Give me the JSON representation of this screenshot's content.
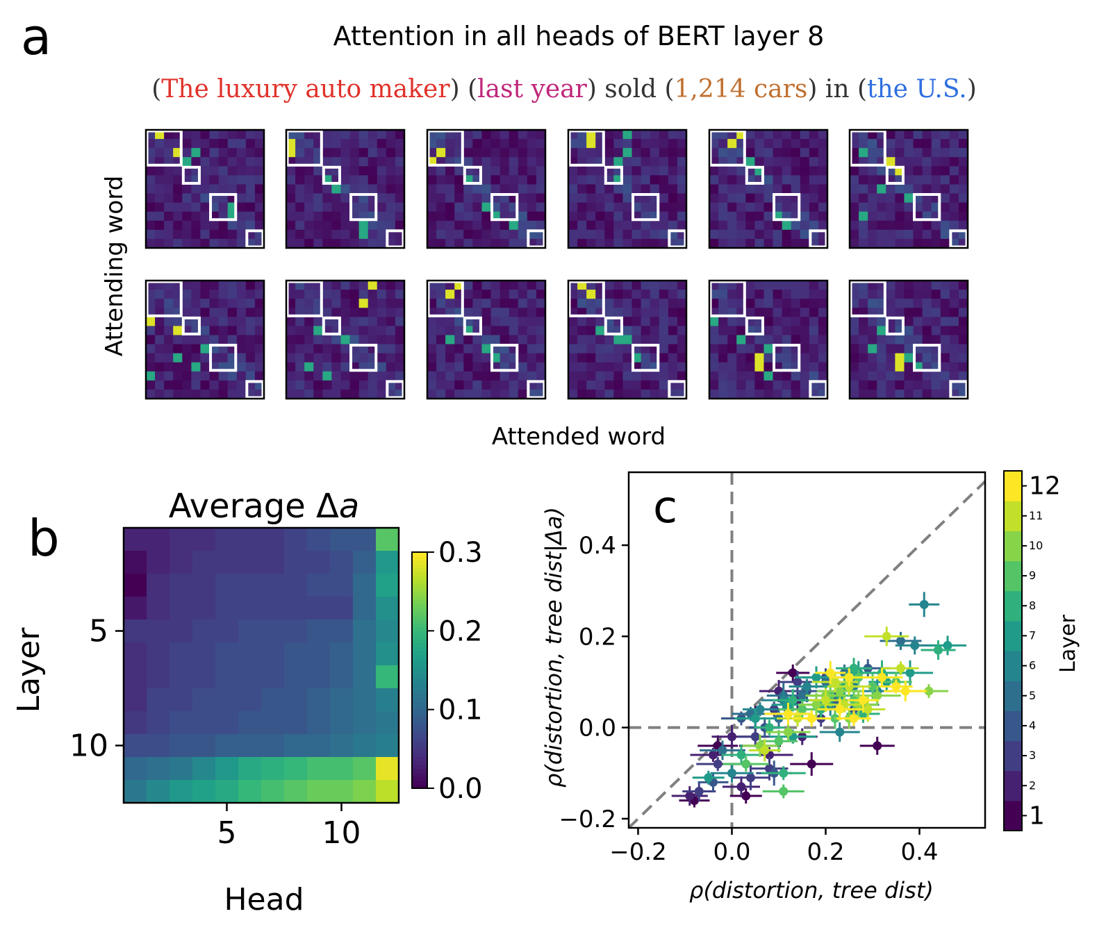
{
  "panels": {
    "a": {
      "letter": "a",
      "title": "Attention in all heads of BERT layer 8",
      "sentence": [
        {
          "text": "(",
          "color": "#333333"
        },
        {
          "text": "The luxury auto maker",
          "color": "#e0322b"
        },
        {
          "text": ") (",
          "color": "#333333"
        },
        {
          "text": "last year",
          "color": "#c0267a"
        },
        {
          "text": ") sold (",
          "color": "#333333"
        },
        {
          "text": "1,214 cars",
          "color": "#c07030"
        },
        {
          "text": ") in (",
          "color": "#333333"
        },
        {
          "text": "the U.S.",
          "color": "#2f6fe0"
        },
        {
          "text": ")",
          "color": "#333333"
        }
      ],
      "ylabel": "Attending word",
      "xlabel": "Attended word"
    },
    "b": {
      "letter": "b",
      "title": "Average Δ",
      "title_italic": "a",
      "xlabel": "Head",
      "ylabel": "Layer",
      "colorbar_ticks": [
        "0.0",
        "0.1",
        "0.2",
        "0.3"
      ]
    },
    "c": {
      "letter": "c",
      "xlabel": "ρ(distortion, tree dist)",
      "ylabel": "ρ(distortion, tree dist|Δa)",
      "colorbar_label": "Layer"
    }
  },
  "chart_data": [
    {
      "type": "heatmap",
      "panel": "a",
      "description_words": 13,
      "heads": 12,
      "phrase_groups": [
        [
          0,
          3
        ],
        [
          4,
          5
        ],
        [
          7,
          9
        ],
        [
          11,
          12
        ]
      ],
      "colormap": "viridis",
      "peaks": [
        [
          [
            0,
            1
          ],
          [
            2,
            3
          ],
          [
            3,
            4
          ],
          [
            2,
            5
          ],
          [
            8,
            9
          ],
          [
            9,
            9
          ]
        ],
        [
          [
            1,
            0
          ],
          [
            2,
            0
          ],
          [
            5,
            4
          ],
          [
            6,
            5
          ],
          [
            10,
            8
          ],
          [
            11,
            8
          ]
        ],
        [
          [
            3,
            0
          ],
          [
            2,
            1
          ],
          [
            5,
            4
          ],
          [
            8,
            6
          ],
          [
            10,
            9
          ],
          [
            9,
            7
          ]
        ],
        [
          [
            0,
            2
          ],
          [
            1,
            2
          ],
          [
            3,
            5
          ],
          [
            0,
            6
          ],
          [
            2,
            6
          ],
          [
            5,
            5
          ]
        ],
        [
          [
            0,
            3
          ],
          [
            1,
            2
          ],
          [
            3,
            4
          ],
          [
            4,
            5
          ],
          [
            9,
            7
          ],
          [
            10,
            8
          ]
        ],
        [
          [
            3,
            4
          ],
          [
            4,
            5
          ],
          [
            2,
            1
          ],
          [
            6,
            3
          ],
          [
            9,
            1
          ],
          [
            7,
            6
          ]
        ]
      ],
      "peaks_row2": [
        [
          [
            4,
            0
          ],
          [
            5,
            3
          ],
          [
            7,
            6
          ],
          [
            8,
            3
          ],
          [
            9,
            5
          ],
          [
            10,
            0
          ]
        ],
        [
          [
            0,
            9
          ],
          [
            2,
            8
          ],
          [
            5,
            3
          ],
          [
            6,
            6
          ],
          [
            9,
            2
          ],
          [
            10,
            4
          ]
        ],
        [
          [
            0,
            3
          ],
          [
            1,
            2
          ],
          [
            5,
            4
          ],
          [
            7,
            6
          ],
          [
            8,
            7
          ],
          [
            6,
            2
          ]
        ],
        [
          [
            0,
            1
          ],
          [
            1,
            2
          ],
          [
            5,
            3
          ],
          [
            6,
            6
          ],
          [
            6,
            5
          ],
          [
            8,
            7
          ]
        ],
        [
          [
            8,
            5
          ],
          [
            9,
            5
          ],
          [
            4,
            0
          ],
          [
            6,
            3
          ],
          [
            7,
            6
          ],
          [
            10,
            6
          ]
        ],
        [
          [
            8,
            5
          ],
          [
            9,
            5
          ],
          [
            8,
            6
          ],
          [
            7,
            2
          ],
          [
            9,
            7
          ],
          [
            5,
            3
          ]
        ]
      ]
    },
    {
      "type": "heatmap",
      "panel": "b",
      "title": "Average Δa",
      "xlabel": "Head",
      "ylabel": "Layer",
      "x_ticks": [
        5,
        10
      ],
      "y_ticks": [
        5,
        10
      ],
      "rows": 12,
      "cols": 12,
      "color_range": [
        0.0,
        0.3
      ],
      "values": [
        [
          0.03,
          0.03,
          0.04,
          0.04,
          0.05,
          0.05,
          0.05,
          0.06,
          0.07,
          0.08,
          0.08,
          0.22
        ],
        [
          0.01,
          0.03,
          0.04,
          0.05,
          0.05,
          0.05,
          0.05,
          0.06,
          0.06,
          0.07,
          0.09,
          0.16
        ],
        [
          0.0,
          0.04,
          0.05,
          0.05,
          0.06,
          0.06,
          0.06,
          0.06,
          0.07,
          0.07,
          0.1,
          0.17
        ],
        [
          0.02,
          0.04,
          0.05,
          0.05,
          0.06,
          0.06,
          0.06,
          0.06,
          0.06,
          0.06,
          0.1,
          0.15
        ],
        [
          0.05,
          0.05,
          0.05,
          0.06,
          0.06,
          0.07,
          0.07,
          0.07,
          0.08,
          0.08,
          0.11,
          0.14
        ],
        [
          0.04,
          0.05,
          0.06,
          0.06,
          0.07,
          0.07,
          0.07,
          0.08,
          0.08,
          0.09,
          0.11,
          0.15
        ],
        [
          0.04,
          0.05,
          0.06,
          0.06,
          0.07,
          0.07,
          0.07,
          0.08,
          0.08,
          0.09,
          0.11,
          0.2
        ],
        [
          0.04,
          0.06,
          0.06,
          0.07,
          0.07,
          0.07,
          0.08,
          0.08,
          0.09,
          0.1,
          0.11,
          0.13
        ],
        [
          0.05,
          0.06,
          0.07,
          0.07,
          0.07,
          0.08,
          0.08,
          0.08,
          0.09,
          0.1,
          0.11,
          0.12
        ],
        [
          0.07,
          0.07,
          0.08,
          0.08,
          0.09,
          0.09,
          0.09,
          0.1,
          0.1,
          0.11,
          0.12,
          0.13
        ],
        [
          0.1,
          0.11,
          0.12,
          0.14,
          0.16,
          0.18,
          0.19,
          0.2,
          0.21,
          0.21,
          0.22,
          0.29
        ],
        [
          0.12,
          0.14,
          0.16,
          0.17,
          0.18,
          0.2,
          0.21,
          0.22,
          0.23,
          0.23,
          0.24,
          0.27
        ]
      ]
    },
    {
      "type": "scatter",
      "panel": "c",
      "xlabel": "ρ(distortion, tree dist)",
      "ylabel": "ρ(distortion, tree dist|Δa)",
      "xlim": [
        -0.22,
        0.54
      ],
      "ylim": [
        -0.22,
        0.56
      ],
      "x_ticks": [
        "−0.2",
        "0.0",
        "0.2",
        "0.4"
      ],
      "y_ticks": [
        "−0.2",
        "0.0",
        "0.2",
        "0.4"
      ],
      "reference_lines": [
        "x=0",
        "y=0",
        "y=x"
      ],
      "colorbar": {
        "label": "Layer",
        "range": [
          1,
          12
        ],
        "ticks": [
          1,
          2,
          3,
          4,
          5,
          6,
          7,
          8,
          9,
          10,
          11,
          12
        ]
      },
      "points": [
        [
          -0.08,
          -0.16,
          1
        ],
        [
          -0.03,
          -0.04,
          1
        ],
        [
          0.03,
          -0.15,
          1
        ],
        [
          0.06,
          -0.04,
          1
        ],
        [
          0.13,
          0.12,
          1
        ],
        [
          0.17,
          -0.08,
          1
        ],
        [
          0.31,
          -0.04,
          1
        ],
        [
          0.05,
          0.02,
          1
        ],
        [
          -0.09,
          -0.15,
          2
        ],
        [
          -0.04,
          -0.06,
          2
        ],
        [
          0.02,
          -0.13,
          2
        ],
        [
          0.08,
          -0.06,
          2
        ],
        [
          0.1,
          0.08,
          2
        ],
        [
          0.15,
          -0.02,
          2
        ],
        [
          0.0,
          -0.02,
          2
        ],
        [
          0.12,
          0.04,
          2
        ],
        [
          0.14,
          0.06,
          2
        ],
        [
          -0.07,
          -0.14,
          3
        ],
        [
          -0.03,
          -0.08,
          3
        ],
        [
          0.05,
          -0.02,
          3
        ],
        [
          0.09,
          0.04,
          3
        ],
        [
          0.14,
          0.1,
          3
        ],
        [
          0.19,
          0.02,
          3
        ],
        [
          0.08,
          -0.09,
          3
        ],
        [
          0.2,
          0.11,
          3
        ],
        [
          0.04,
          -0.11,
          3
        ],
        [
          -0.04,
          -0.12,
          4
        ],
        [
          0.02,
          0.02,
          4
        ],
        [
          0.07,
          0.0,
          4
        ],
        [
          0.12,
          0.03,
          4
        ],
        [
          0.16,
          0.08,
          4
        ],
        [
          0.22,
          0.06,
          4
        ],
        [
          0.26,
          0.04,
          4
        ],
        [
          0.29,
          0.13,
          4
        ],
        [
          0.09,
          -0.1,
          4
        ],
        [
          -0.02,
          -0.05,
          5
        ],
        [
          0.04,
          0.03,
          5
        ],
        [
          0.1,
          0.02,
          5
        ],
        [
          0.15,
          0.07,
          5
        ],
        [
          0.2,
          0.1,
          5
        ],
        [
          0.24,
          0.12,
          5
        ],
        [
          0.28,
          0.05,
          5
        ],
        [
          0.36,
          0.19,
          5
        ],
        [
          0.11,
          0.07,
          5
        ],
        [
          0.0,
          -0.1,
          6
        ],
        [
          0.06,
          0.04,
          6
        ],
        [
          0.11,
          0.06,
          6
        ],
        [
          0.16,
          0.09,
          6
        ],
        [
          0.21,
          0.05,
          6
        ],
        [
          0.26,
          0.09,
          6
        ],
        [
          0.31,
          0.08,
          6
        ],
        [
          0.39,
          0.18,
          6
        ],
        [
          0.41,
          0.27,
          6
        ],
        [
          0.23,
          -0.01,
          6
        ],
        [
          -0.05,
          -0.11,
          7
        ],
        [
          0.05,
          0.02,
          7
        ],
        [
          0.12,
          0.05,
          7
        ],
        [
          0.18,
          0.11,
          7
        ],
        [
          0.23,
          0.07,
          7
        ],
        [
          0.27,
          0.12,
          7
        ],
        [
          0.33,
          0.1,
          7
        ],
        [
          0.38,
          0.12,
          7
        ],
        [
          0.46,
          0.18,
          7
        ],
        [
          0.13,
          -0.02,
          7
        ],
        [
          0.02,
          -0.06,
          8
        ],
        [
          0.08,
          0.0,
          8
        ],
        [
          0.13,
          0.06,
          8
        ],
        [
          0.19,
          0.04,
          8
        ],
        [
          0.24,
          0.09,
          8
        ],
        [
          0.28,
          0.03,
          8
        ],
        [
          0.32,
          0.12,
          8
        ],
        [
          0.44,
          0.17,
          8
        ],
        [
          0.11,
          -0.1,
          8
        ],
        [
          0.26,
          0.13,
          8
        ],
        [
          0.03,
          -0.08,
          9
        ],
        [
          0.1,
          -0.03,
          9
        ],
        [
          0.15,
          0.04,
          9
        ],
        [
          0.21,
          0.07,
          9
        ],
        [
          0.26,
          0.06,
          9
        ],
        [
          0.3,
          0.09,
          9
        ],
        [
          0.35,
          0.1,
          9
        ],
        [
          0.11,
          -0.14,
          9
        ],
        [
          0.22,
          0.02,
          9
        ],
        [
          0.27,
          0.11,
          9
        ],
        [
          0.06,
          -0.04,
          10
        ],
        [
          0.12,
          -0.01,
          10
        ],
        [
          0.18,
          0.05,
          10
        ],
        [
          0.23,
          0.08,
          10
        ],
        [
          0.27,
          0.05,
          10
        ],
        [
          0.31,
          0.07,
          10
        ],
        [
          0.42,
          0.08,
          10
        ],
        [
          0.25,
          0.02,
          10
        ],
        [
          0.2,
          0.07,
          10
        ],
        [
          0.07,
          -0.05,
          11
        ],
        [
          0.14,
          0.02,
          11
        ],
        [
          0.2,
          0.06,
          11
        ],
        [
          0.25,
          0.09,
          11
        ],
        [
          0.29,
          0.04,
          11
        ],
        [
          0.33,
          0.2,
          11
        ],
        [
          0.36,
          0.13,
          11
        ],
        [
          0.22,
          0.1,
          11
        ],
        [
          0.24,
          0.05,
          11
        ],
        [
          0.12,
          0.03,
          12
        ],
        [
          0.17,
          0.02,
          12
        ],
        [
          0.21,
          0.12,
          12
        ],
        [
          0.25,
          0.11,
          12
        ],
        [
          0.28,
          0.06,
          12
        ],
        [
          0.32,
          0.11,
          12
        ],
        [
          0.35,
          0.09,
          12
        ],
        [
          0.37,
          0.08,
          12
        ],
        [
          0.26,
          0.02,
          12
        ],
        [
          0.23,
          0.04,
          12
        ]
      ]
    }
  ]
}
